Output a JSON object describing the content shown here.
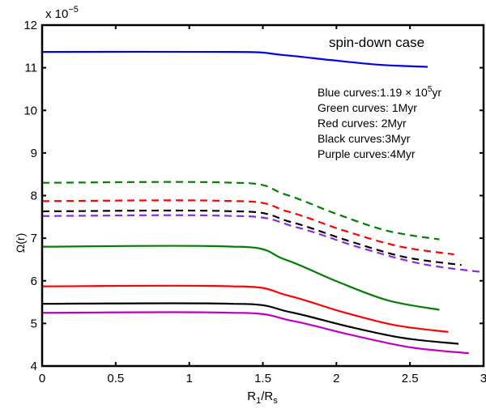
{
  "chart_data": {
    "type": "line",
    "title": "spin-down case",
    "xlabel": "R1/Rs",
    "xlabel_main": "R",
    "xlabel_sub1": "1",
    "xlabel_slash": "/R",
    "xlabel_sub2": "s",
    "ylabel": "Ω(r)",
    "y_multiplier": "x 10",
    "y_multiplier_exp": "−5",
    "xlim": [
      0,
      3
    ],
    "ylim": [
      4,
      12
    ],
    "xticks": [
      "0",
      "0.5",
      "1",
      "1.5",
      "2",
      "2.5",
      "3"
    ],
    "yticks": [
      "4",
      "5",
      "6",
      "7",
      "8",
      "9",
      "10",
      "11",
      "12"
    ],
    "grid": false,
    "annotations": [
      {
        "text": "Blue curves:1.19 × 10",
        "sup": "5",
        "after": "yr"
      },
      {
        "text": "Green curves: 1Myr"
      },
      {
        "text": "Red curves: 2Myr"
      },
      {
        "text": "Black curves:3Myr"
      },
      {
        "text": "Purple curves:4Myr"
      }
    ],
    "series": [
      {
        "name": "blue-solid",
        "color": "#0000ee",
        "dashed": false,
        "points": [
          [
            0,
            11.37
          ],
          [
            1.3,
            11.37
          ],
          [
            1.63,
            11.3
          ],
          [
            1.96,
            11.18
          ],
          [
            2.29,
            11.07
          ],
          [
            2.62,
            11.02
          ]
        ]
      },
      {
        "name": "green-dashed",
        "color": "#007f00",
        "dashed": true,
        "points": [
          [
            0,
            8.3
          ],
          [
            1.3,
            8.3
          ],
          [
            1.65,
            8.03
          ],
          [
            2.0,
            7.57
          ],
          [
            2.35,
            7.17
          ],
          [
            2.7,
            6.97
          ]
        ]
      },
      {
        "name": "red-dashed",
        "color": "#ff0000",
        "dashed": true,
        "points": [
          [
            0,
            7.87
          ],
          [
            1.3,
            7.87
          ],
          [
            1.675,
            7.62
          ],
          [
            2.05,
            7.18
          ],
          [
            2.425,
            6.81
          ],
          [
            2.8,
            6.62
          ]
        ]
      },
      {
        "name": "black-dashed",
        "color": "#000000",
        "dashed": true,
        "points": [
          [
            0,
            7.63
          ],
          [
            1.3,
            7.63
          ],
          [
            1.69,
            7.38
          ],
          [
            2.08,
            6.94
          ],
          [
            2.46,
            6.56
          ],
          [
            2.85,
            6.37
          ]
        ]
      },
      {
        "name": "purple-dashed",
        "color": "#8a2be2",
        "dashed": true,
        "points": [
          [
            0,
            7.52
          ],
          [
            1.3,
            7.52
          ],
          [
            1.725,
            7.26
          ],
          [
            2.15,
            6.79
          ],
          [
            2.575,
            6.4
          ],
          [
            3.0,
            6.2
          ]
        ]
      },
      {
        "name": "green-solid",
        "color": "#007f00",
        "dashed": false,
        "points": [
          [
            0,
            6.8
          ],
          [
            1.3,
            6.8
          ],
          [
            1.65,
            6.5
          ],
          [
            2.0,
            5.99
          ],
          [
            2.35,
            5.54
          ],
          [
            2.7,
            5.32
          ]
        ]
      },
      {
        "name": "red-solid",
        "color": "#ff0000",
        "dashed": false,
        "points": [
          [
            0,
            5.87
          ],
          [
            1.3,
            5.87
          ],
          [
            1.665,
            5.66
          ],
          [
            2.03,
            5.28
          ],
          [
            2.395,
            4.96
          ],
          [
            2.76,
            4.8
          ]
        ]
      },
      {
        "name": "black-solid",
        "color": "#000000",
        "dashed": false,
        "points": [
          [
            0,
            5.46
          ],
          [
            1.3,
            5.46
          ],
          [
            1.68,
            5.27
          ],
          [
            2.065,
            4.94
          ],
          [
            2.45,
            4.66
          ],
          [
            2.83,
            4.52
          ]
        ]
      },
      {
        "name": "purple-solid",
        "color": "#c000c0",
        "dashed": false,
        "points": [
          [
            0,
            5.25
          ],
          [
            1.3,
            5.25
          ],
          [
            1.7,
            5.06
          ],
          [
            2.1,
            4.73
          ],
          [
            2.5,
            4.44
          ],
          [
            2.9,
            4.3
          ]
        ]
      }
    ]
  }
}
